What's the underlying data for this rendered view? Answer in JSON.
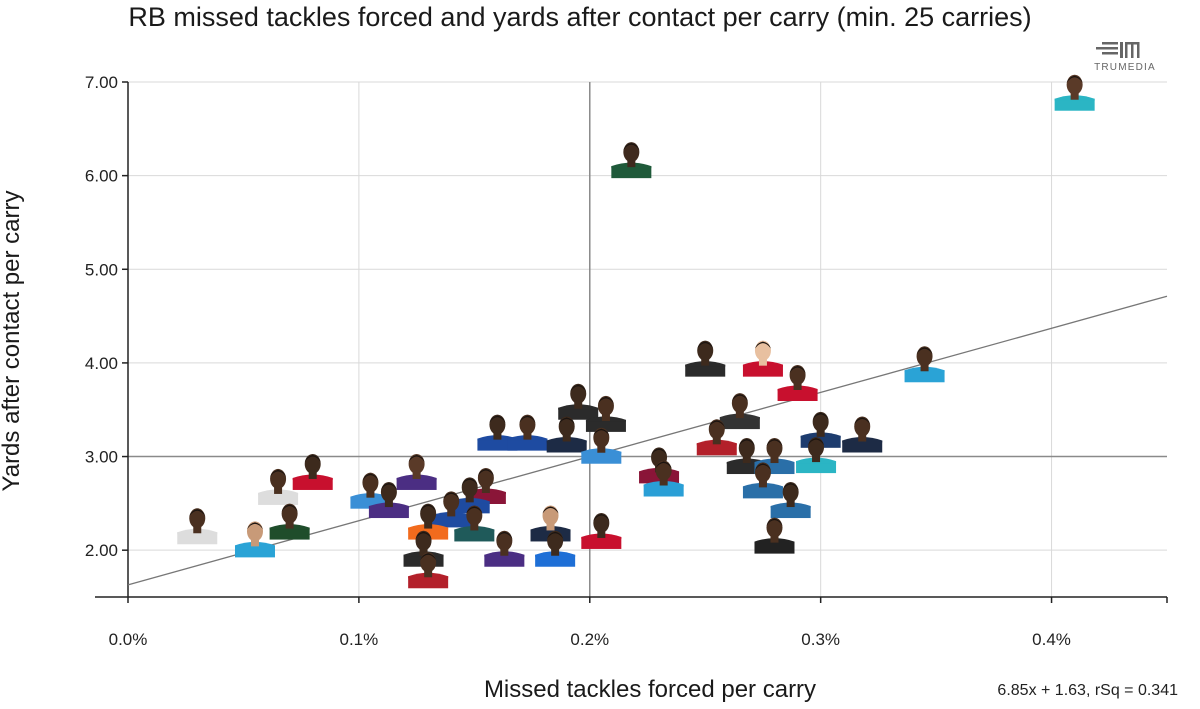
{
  "chart_data": {
    "type": "scatter",
    "title": "RB missed tackles forced and yards after contact per carry (min. 25 carries)",
    "xlabel": "Missed tackles forced per carry",
    "ylabel": "Yards after contact per carry",
    "xlim": [
      0,
      0.0045
    ],
    "ylim": [
      1.5,
      7.0
    ],
    "x_ticks": [
      0,
      0.001,
      0.002,
      0.003,
      0.004
    ],
    "x_tick_labels": [
      "0.0%",
      "0.1%",
      "0.2%",
      "0.3%",
      "0.4%"
    ],
    "y_ticks": [
      2,
      3,
      4,
      5,
      6,
      7
    ],
    "y_tick_labels": [
      "2.00",
      "3.00",
      "4.00",
      "5.00",
      "6.00",
      "7.00"
    ],
    "grid": true,
    "reference_lines": {
      "x": 0.002,
      "y": 3.0
    },
    "trendline": {
      "slope": 6.85,
      "intercept": 1.63,
      "label": "6.85x + 1.63, rSq = 0.341"
    },
    "marker": "player headshot with team-colored jersey",
    "points": [
      {
        "x": 0.0041,
        "y": 6.8,
        "jersey": "#2bb5c4",
        "skin": "#5a3a28"
      },
      {
        "x": 0.00218,
        "y": 6.08,
        "jersey": "#1f5a3a",
        "skin": "#3f2a1e"
      },
      {
        "x": 0.00345,
        "y": 3.9,
        "jersey": "#2aa3d6",
        "skin": "#4a3020"
      },
      {
        "x": 0.0025,
        "y": 3.96,
        "jersey": "#2b2b2b",
        "skin": "#3d2a1d"
      },
      {
        "x": 0.00275,
        "y": 3.96,
        "jersey": "#c8102e",
        "skin": "#e8c0a0"
      },
      {
        "x": 0.0029,
        "y": 3.7,
        "jersey": "#c8102e",
        "skin": "#4a3020"
      },
      {
        "x": 0.00195,
        "y": 3.5,
        "jersey": "#2b2b2b",
        "skin": "#3d2a1d"
      },
      {
        "x": 0.00207,
        "y": 3.37,
        "jersey": "#2b2b2b",
        "skin": "#4a3020"
      },
      {
        "x": 0.00265,
        "y": 3.4,
        "jersey": "#333333",
        "skin": "#4a3020"
      },
      {
        "x": 0.003,
        "y": 3.2,
        "jersey": "#1d3c6e",
        "skin": "#3d2a1d"
      },
      {
        "x": 0.00318,
        "y": 3.15,
        "jersey": "#1d2b45",
        "skin": "#4a3020"
      },
      {
        "x": 0.0016,
        "y": 3.17,
        "jersey": "#1e4ba1",
        "skin": "#3d2a1d"
      },
      {
        "x": 0.00173,
        "y": 3.17,
        "jersey": "#1e4ba1",
        "skin": "#4a3020"
      },
      {
        "x": 0.0019,
        "y": 3.15,
        "jersey": "#1d2b45",
        "skin": "#3d2a1d"
      },
      {
        "x": 0.00255,
        "y": 3.12,
        "jersey": "#b3202a",
        "skin": "#4a3020"
      },
      {
        "x": 0.00205,
        "y": 3.03,
        "jersey": "#3a8fd6",
        "skin": "#4a3020"
      },
      {
        "x": 0.00268,
        "y": 2.92,
        "jersey": "#2b2b2b",
        "skin": "#3d2a1d"
      },
      {
        "x": 0.0028,
        "y": 2.92,
        "jersey": "#2a6fa8",
        "skin": "#4a3020"
      },
      {
        "x": 0.00298,
        "y": 2.93,
        "jersey": "#2bb5c4",
        "skin": "#3d2a1d"
      },
      {
        "x": 0.0023,
        "y": 2.82,
        "jersey": "#8a1538",
        "skin": "#3d2a1d"
      },
      {
        "x": 0.00232,
        "y": 2.68,
        "jersey": "#2a9fd6",
        "skin": "#4a3020"
      },
      {
        "x": 0.00275,
        "y": 2.66,
        "jersey": "#2a6fa8",
        "skin": "#4a3020"
      },
      {
        "x": 0.00287,
        "y": 2.45,
        "jersey": "#2a6fa8",
        "skin": "#3d2a1d"
      },
      {
        "x": 0.0008,
        "y": 2.75,
        "jersey": "#c8102e",
        "skin": "#3d2a1d"
      },
      {
        "x": 0.00065,
        "y": 2.59,
        "jersey": "#dddddd",
        "skin": "#4a3020"
      },
      {
        "x": 0.00125,
        "y": 2.75,
        "jersey": "#4b2e83",
        "skin": "#5a3a28"
      },
      {
        "x": 0.00105,
        "y": 2.55,
        "jersey": "#3a8fd6",
        "skin": "#4a3020"
      },
      {
        "x": 0.00113,
        "y": 2.45,
        "jersey": "#4b2e83",
        "skin": "#3d2a1d"
      },
      {
        "x": 0.00155,
        "y": 2.6,
        "jersey": "#8a1538",
        "skin": "#4a3020"
      },
      {
        "x": 0.00148,
        "y": 2.5,
        "jersey": "#1e4ba1",
        "skin": "#3d2a1d"
      },
      {
        "x": 0.0014,
        "y": 2.35,
        "jersey": "#1e4ba1",
        "skin": "#4a3020"
      },
      {
        "x": 0.0015,
        "y": 2.2,
        "jersey": "#1f5a5a",
        "skin": "#4a3020"
      },
      {
        "x": 0.0013,
        "y": 2.22,
        "jersey": "#f26b1d",
        "skin": "#3d2a1d"
      },
      {
        "x": 0.00183,
        "y": 2.2,
        "jersey": "#1d2b45",
        "skin": "#c89a78"
      },
      {
        "x": 0.00205,
        "y": 2.12,
        "jersey": "#c8102e",
        "skin": "#3d2a1d"
      },
      {
        "x": 0.0007,
        "y": 2.22,
        "jersey": "#1f4d2b",
        "skin": "#4a3020"
      },
      {
        "x": 0.0003,
        "y": 2.17,
        "jersey": "#dddddd",
        "skin": "#4a3020"
      },
      {
        "x": 0.00055,
        "y": 2.03,
        "jersey": "#2aa3d6",
        "skin": "#c89a78"
      },
      {
        "x": 0.00128,
        "y": 1.93,
        "jersey": "#2b2b2b",
        "skin": "#3d2a1d"
      },
      {
        "x": 0.0013,
        "y": 1.7,
        "jersey": "#b3202a",
        "skin": "#4a3020"
      },
      {
        "x": 0.00163,
        "y": 1.93,
        "jersey": "#4b2e83",
        "skin": "#4a3020"
      },
      {
        "x": 0.00185,
        "y": 1.93,
        "jersey": "#1e6fd6",
        "skin": "#3d2a1d"
      },
      {
        "x": 0.0028,
        "y": 2.07,
        "jersey": "#222222",
        "skin": "#4a3020"
      }
    ]
  },
  "branding": {
    "logo_text": "TRUMEDIA"
  }
}
